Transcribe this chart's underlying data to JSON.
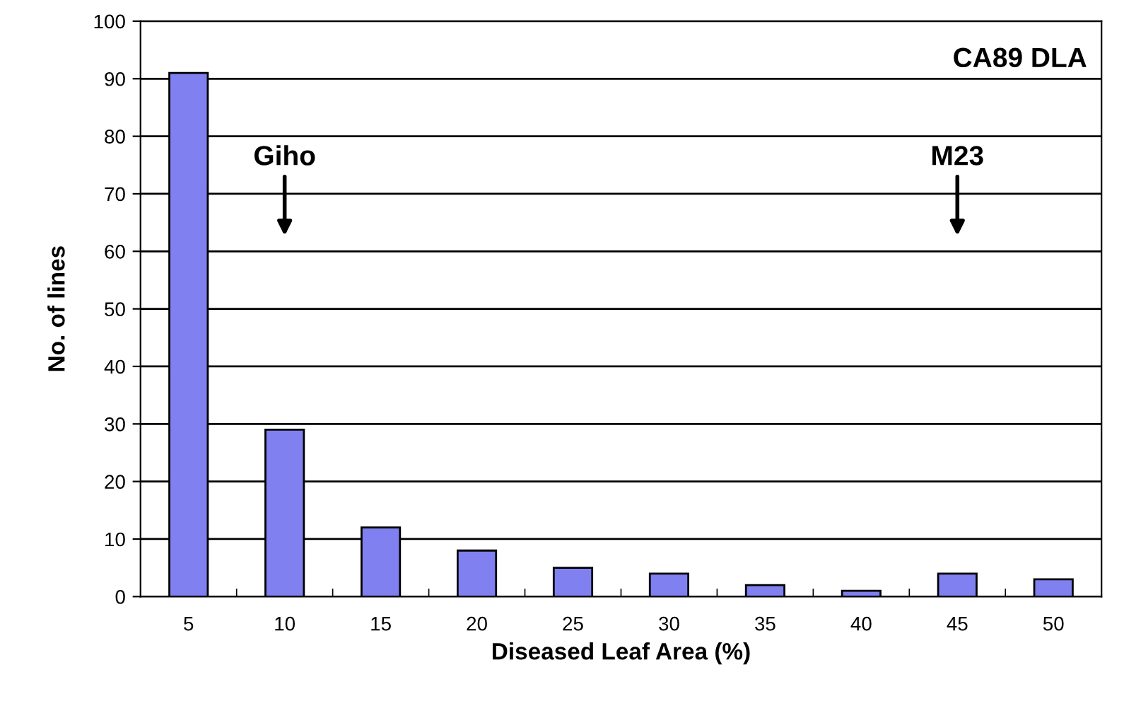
{
  "chart_data": {
    "type": "bar",
    "title": "CA89 DLA",
    "xlabel": "Diseased Leaf Area (%)",
    "ylabel": "No. of lines",
    "categories": [
      "5",
      "10",
      "15",
      "20",
      "25",
      "30",
      "35",
      "40",
      "45",
      "50"
    ],
    "values": [
      91,
      29,
      12,
      8,
      5,
      4,
      2,
      1,
      4,
      3
    ],
    "color": "#8080f0",
    "ylim": [
      0,
      100
    ],
    "yticks": [
      0,
      10,
      20,
      30,
      40,
      50,
      60,
      70,
      80,
      90,
      100
    ],
    "grid": "y",
    "annotations": [
      "Giho",
      "M23"
    ]
  }
}
